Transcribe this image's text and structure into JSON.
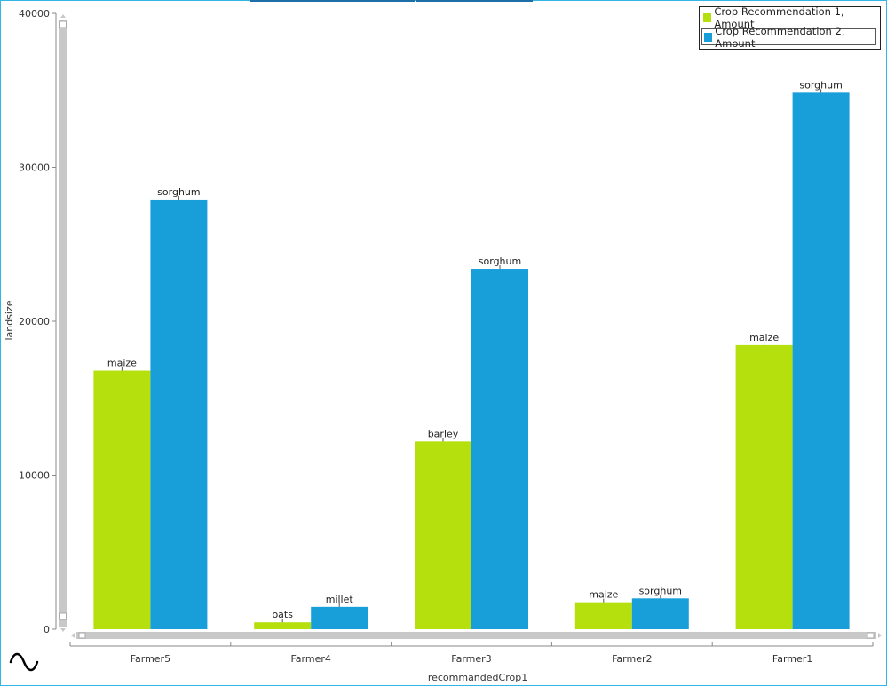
{
  "chart_data": {
    "type": "bar",
    "categories": [
      "Farmer5",
      "Farmer4",
      "Farmer3",
      "Farmer2",
      "Farmer1"
    ],
    "series": [
      {
        "name": "Crop Recommendation 1, Amount",
        "color": "#b5e00e",
        "values": [
          16800,
          450,
          12200,
          1750,
          18450
        ],
        "labels": [
          "maize",
          "oats",
          "barley",
          "maize",
          "maize"
        ]
      },
      {
        "name": "Crop Recommendation 2, Amount",
        "color": "#189fda",
        "values": [
          27900,
          1450,
          23400,
          2000,
          34850
        ],
        "labels": [
          "sorghum",
          "millet",
          "sorghum",
          "sorghum",
          "sorghum"
        ]
      }
    ],
    "xlabel": "recommandedCrop1",
    "ylabel": "landsize",
    "ylim": [
      0,
      40000
    ],
    "yticks": [
      "0",
      "10000",
      "20000",
      "30000",
      "40000"
    ],
    "grid": false,
    "legend_position": "top-right"
  },
  "icons": {
    "chart_type_icon": "sine-wave-icon"
  }
}
